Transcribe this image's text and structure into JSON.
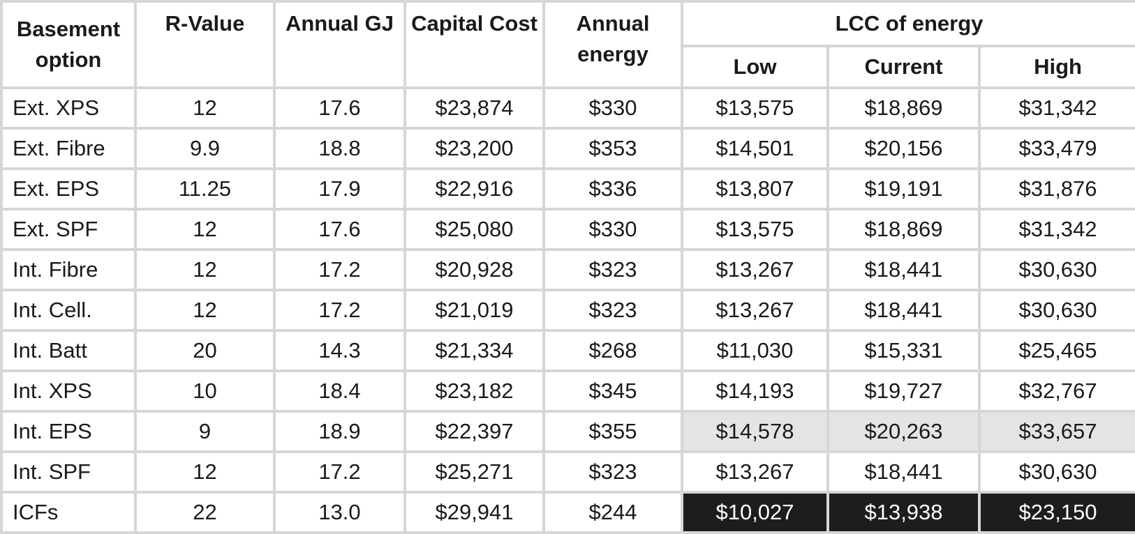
{
  "headers": {
    "option": "Basement option",
    "rvalue": "R-Value",
    "annual_gj": "Annual GJ",
    "capital_cost": "Capital Cost",
    "annual_energy": "Annual energy",
    "lcc_group": "LCC of energy",
    "lcc_low": "Low",
    "lcc_current": "Current",
    "lcc_high": "High"
  },
  "rows": [
    {
      "option": "Ext. XPS",
      "rvalue": "12",
      "gj": "17.6",
      "capital": "$23,874",
      "energy": "$330",
      "low": "$13,575",
      "current": "$18,869",
      "high": "$31,342"
    },
    {
      "option": "Ext. Fibre",
      "rvalue": "9.9",
      "gj": "18.8",
      "capital": "$23,200",
      "energy": "$353",
      "low": "$14,501",
      "current": "$20,156",
      "high": "$33,479"
    },
    {
      "option": "Ext. EPS",
      "rvalue": "11.25",
      "gj": "17.9",
      "capital": "$22,916",
      "energy": "$336",
      "low": "$13,807",
      "current": "$19,191",
      "high": "$31,876"
    },
    {
      "option": "Ext. SPF",
      "rvalue": "12",
      "gj": "17.6",
      "capital": "$25,080",
      "energy": "$330",
      "low": "$13,575",
      "current": "$18,869",
      "high": "$31,342"
    },
    {
      "option": "Int. Fibre",
      "rvalue": "12",
      "gj": "17.2",
      "capital": "$20,928",
      "energy": "$323",
      "low": "$13,267",
      "current": "$18,441",
      "high": "$30,630"
    },
    {
      "option": "Int. Cell.",
      "rvalue": "12",
      "gj": "17.2",
      "capital": "$21,019",
      "energy": "$323",
      "low": "$13,267",
      "current": "$18,441",
      "high": "$30,630"
    },
    {
      "option": "Int. Batt",
      "rvalue": "20",
      "gj": "14.3",
      "capital": "$21,334",
      "energy": "$268",
      "low": "$11,030",
      "current": "$15,331",
      "high": "$25,465"
    },
    {
      "option": "Int. XPS",
      "rvalue": "10",
      "gj": "18.4",
      "capital": "$23,182",
      "energy": "$345",
      "low": "$14,193",
      "current": "$19,727",
      "high": "$32,767"
    },
    {
      "option": "Int. EPS",
      "rvalue": "9",
      "gj": "18.9",
      "capital": "$22,397",
      "energy": "$355",
      "low": "$14,578",
      "current": "$20,263",
      "high": "$33,657"
    },
    {
      "option": "Int. SPF",
      "rvalue": "12",
      "gj": "17.2",
      "capital": "$25,271",
      "energy": "$323",
      "low": "$13,267",
      "current": "$18,441",
      "high": "$30,630"
    },
    {
      "option": "ICFs",
      "rvalue": "22",
      "gj": "13.0",
      "capital": "$29,941",
      "energy": "$244",
      "low": "$10,027",
      "current": "$13,938",
      "high": "$23,150"
    }
  ],
  "colors": {
    "border": "#d6d6d6",
    "highlight_light": "#e4e4e4",
    "highlight_dark": "#1f1c1d"
  }
}
